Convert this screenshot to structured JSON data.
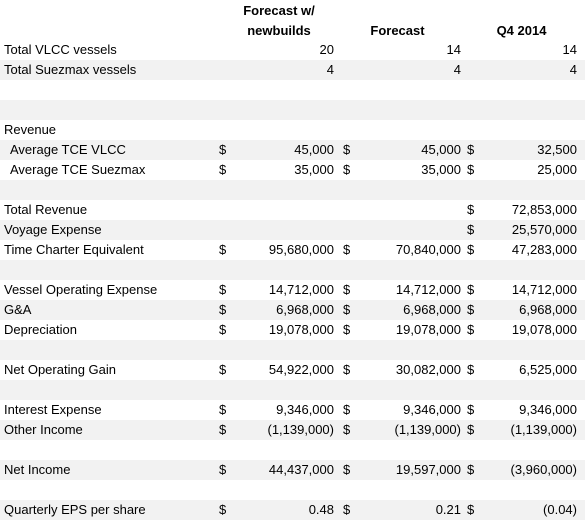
{
  "header": {
    "col1_line1": "Forecast w/",
    "col1_line2": "newbuilds",
    "col2": "Forecast",
    "col3": "Q4 2014"
  },
  "rows": [
    {
      "label": "Total VLCC vessels",
      "d1": "",
      "v1": "20",
      "d2": "",
      "v2": "14",
      "d3": "",
      "v3": "14",
      "indent": false
    },
    {
      "label": "Total Suezmax vessels",
      "d1": "",
      "v1": "4",
      "d2": "",
      "v2": "4",
      "d3": "",
      "v3": "4",
      "indent": false
    },
    {
      "label": "",
      "d1": "",
      "v1": "",
      "d2": "",
      "v2": "",
      "d3": "",
      "v3": "",
      "indent": false
    },
    {
      "label": "",
      "d1": "",
      "v1": "",
      "d2": "",
      "v2": "",
      "d3": "",
      "v3": "",
      "indent": false
    },
    {
      "label": "Revenue",
      "d1": "",
      "v1": "",
      "d2": "",
      "v2": "",
      "d3": "",
      "v3": "",
      "indent": false
    },
    {
      "label": "Average TCE VLCC",
      "d1": "$",
      "v1": "45,000",
      "d2": "$",
      "v2": "45,000",
      "d3": "$",
      "v3": "32,500",
      "indent": true
    },
    {
      "label": "Average TCE Suezmax",
      "d1": "$",
      "v1": "35,000",
      "d2": "$",
      "v2": "35,000",
      "d3": "$",
      "v3": "25,000",
      "indent": true
    },
    {
      "label": "",
      "d1": "",
      "v1": "",
      "d2": "",
      "v2": "",
      "d3": "",
      "v3": "",
      "indent": false
    },
    {
      "label": "Total Revenue",
      "d1": "",
      "v1": "",
      "d2": "",
      "v2": "",
      "d3": "$",
      "v3": "72,853,000",
      "indent": false
    },
    {
      "label": "Voyage Expense",
      "d1": "",
      "v1": "",
      "d2": "",
      "v2": "",
      "d3": "$",
      "v3": "25,570,000",
      "indent": false
    },
    {
      "label": "Time Charter Equivalent",
      "d1": "$",
      "v1": "95,680,000",
      "d2": "$",
      "v2": "70,840,000",
      "d3": "$",
      "v3": "47,283,000",
      "indent": false
    },
    {
      "label": "",
      "d1": "",
      "v1": "",
      "d2": "",
      "v2": "",
      "d3": "",
      "v3": "",
      "indent": false
    },
    {
      "label": "Vessel Operating Expense",
      "d1": "$",
      "v1": "14,712,000",
      "d2": "$",
      "v2": "14,712,000",
      "d3": "$",
      "v3": "14,712,000",
      "indent": false
    },
    {
      "label": "G&A",
      "d1": "$",
      "v1": "6,968,000",
      "d2": "$",
      "v2": "6,968,000",
      "d3": "$",
      "v3": "6,968,000",
      "indent": false
    },
    {
      "label": "Depreciation",
      "d1": "$",
      "v1": "19,078,000",
      "d2": "$",
      "v2": "19,078,000",
      "d3": "$",
      "v3": "19,078,000",
      "indent": false
    },
    {
      "label": "",
      "d1": "",
      "v1": "",
      "d2": "",
      "v2": "",
      "d3": "",
      "v3": "",
      "indent": false
    },
    {
      "label": "Net Operating Gain",
      "d1": "$",
      "v1": "54,922,000",
      "d2": "$",
      "v2": "30,082,000",
      "d3": "$",
      "v3": "6,525,000",
      "indent": false
    },
    {
      "label": "",
      "d1": "",
      "v1": "",
      "d2": "",
      "v2": "",
      "d3": "",
      "v3": "",
      "indent": false
    },
    {
      "label": "Interest Expense",
      "d1": "$",
      "v1": "9,346,000",
      "d2": "$",
      "v2": "9,346,000",
      "d3": "$",
      "v3": "9,346,000",
      "indent": false
    },
    {
      "label": "Other Income",
      "d1": "$",
      "v1": "(1,139,000)",
      "d2": "$",
      "v2": "(1,139,000)",
      "d3": "$",
      "v3": "(1,139,000)",
      "indent": false
    },
    {
      "label": "",
      "d1": "",
      "v1": "",
      "d2": "",
      "v2": "",
      "d3": "",
      "v3": "",
      "indent": false
    },
    {
      "label": "Net Income",
      "d1": "$",
      "v1": "44,437,000",
      "d2": "$",
      "v2": "19,597,000",
      "d3": "$",
      "v3": "(3,960,000)",
      "indent": false
    },
    {
      "label": "",
      "d1": "",
      "v1": "",
      "d2": "",
      "v2": "",
      "d3": "",
      "v3": "",
      "indent": false
    },
    {
      "label": "Quarterly EPS per share",
      "d1": "$",
      "v1": "0.48",
      "d2": "$",
      "v2": "0.21",
      "d3": "$",
      "v3": "(0.04)",
      "indent": false
    }
  ]
}
